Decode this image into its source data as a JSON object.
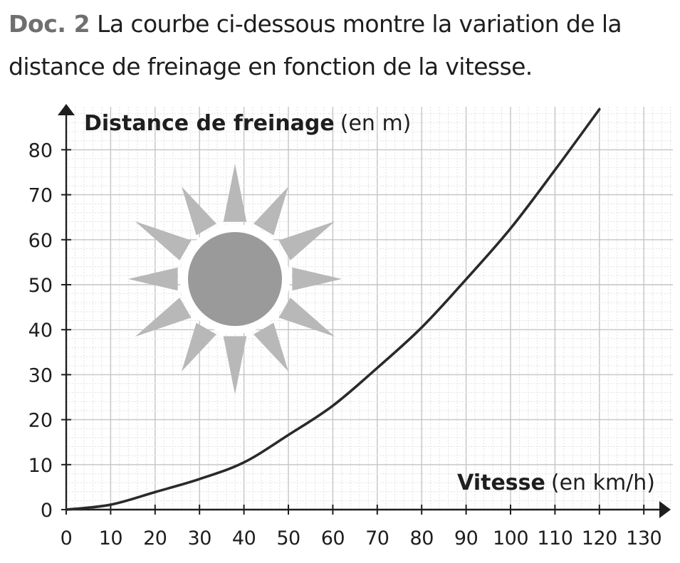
{
  "header": {
    "doc_label": "Doc. 2",
    "description": "La courbe ci-dessous montre la variation de la distance de freinage en fonction de la vitesse."
  },
  "colors": {
    "curve": "#2a2a2a",
    "axis": "#1e1e1e",
    "grid_major": "#c4c4c4",
    "grid_minor": "#e2e2e2",
    "sun_core": "#9a9a9a",
    "sun_rays": "#b8b8b8"
  },
  "icons": {
    "sun": "sun-icon"
  },
  "chart_data": {
    "type": "line",
    "title": "",
    "xlabel": {
      "bold": "Vitesse",
      "unit": "(en km/h)"
    },
    "ylabel": {
      "bold": "Distance de freinage",
      "unit": "(en m)"
    },
    "xlim": [
      0,
      135
    ],
    "ylim": [
      0,
      90
    ],
    "x_ticks": [
      "0",
      "10",
      "20",
      "30",
      "40",
      "50",
      "60",
      "70",
      "80",
      "90",
      "100",
      "110",
      "120",
      "130"
    ],
    "y_ticks": [
      "0",
      "10",
      "20",
      "30",
      "40",
      "50",
      "60",
      "70",
      "80"
    ],
    "grid": true,
    "legend": "none",
    "series": [
      {
        "x": [
          0,
          10,
          20,
          30,
          40,
          50,
          60,
          70,
          80,
          90,
          100,
          110,
          120
        ],
        "y": [
          0,
          1.1,
          3.9,
          6.8,
          10.5,
          16.6,
          23.1,
          31.5,
          40.5,
          51.2,
          62.5,
          75.5,
          89
        ]
      }
    ]
  }
}
